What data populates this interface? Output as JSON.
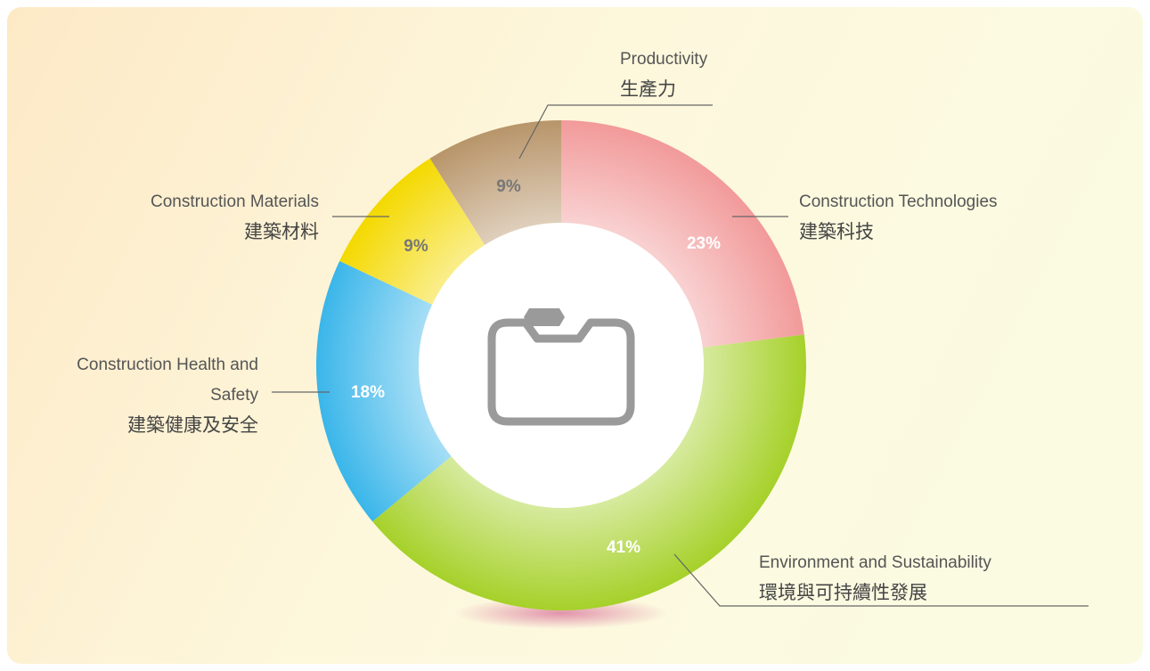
{
  "chart_data": {
    "type": "pie",
    "categories": [
      "Construction Technologies",
      "Environment and Sustainability",
      "Construction Health and Safety",
      "Construction Materials",
      "Productivity"
    ],
    "categories_zh": [
      "建築科技",
      "環境與可持續性發展",
      "建築健康及安全",
      "建築材料",
      "生產力"
    ],
    "values": [
      23,
      41,
      18,
      9,
      9
    ],
    "value_labels": [
      "23%",
      "41%",
      "18%",
      "9%",
      "9%"
    ],
    "colors": [
      "#f29a9a",
      "#a6d12a",
      "#3ab6ea",
      "#f4d900",
      "#b8956a"
    ]
  }
}
